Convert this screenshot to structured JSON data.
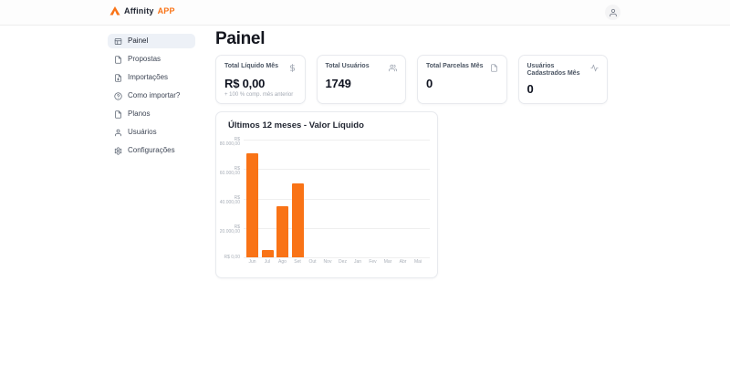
{
  "header": {
    "brand": "Affinity",
    "brand_suffix": "APP"
  },
  "sidebar": {
    "items": [
      {
        "label": "Painel",
        "icon": "dashboard-icon",
        "active": true
      },
      {
        "label": "Propostas",
        "icon": "file-text-icon",
        "active": false
      },
      {
        "label": "Importações",
        "icon": "file-import-icon",
        "active": false
      },
      {
        "label": "Como importar?",
        "icon": "help-circle-icon",
        "active": false
      },
      {
        "label": "Planos",
        "icon": "file-icon",
        "active": false
      },
      {
        "label": "Usuários",
        "icon": "user-icon",
        "active": false
      },
      {
        "label": "Configurações",
        "icon": "gear-icon",
        "active": false
      }
    ]
  },
  "page": {
    "title": "Painel"
  },
  "cards": [
    {
      "label": "Total Líquido Mês",
      "value": "R$ 0,00",
      "subtext": "+ 100 % comp. mês anterior",
      "icon": "dollar-icon"
    },
    {
      "label": "Total Usuários",
      "value": "1749",
      "icon": "users-icon"
    },
    {
      "label": "Total Parcelas Mês",
      "value": "0",
      "icon": "file-text-icon"
    },
    {
      "label": "Usuários Cadastrados Mês",
      "value": "0",
      "icon": "activity-icon"
    }
  ],
  "chart_data": {
    "type": "bar",
    "title": "Últimos 12 meses - Valor Líquido",
    "categories": [
      "Jun",
      "Jul",
      "Ago",
      "Set",
      "Out",
      "Nov",
      "Dez",
      "Jan",
      "Fev",
      "Mar",
      "Abr",
      "Mai"
    ],
    "values": [
      70500,
      5000,
      35000,
      50500,
      0,
      0,
      0,
      0,
      0,
      0,
      0,
      0
    ],
    "y_ticks": [
      "R$ 80.000,00",
      "R$ 60.000,00",
      "R$ 40.000,00",
      "R$ 20.000,00",
      "R$ 0,00"
    ],
    "ylim": [
      0,
      80000
    ],
    "xlabel": "",
    "ylabel": "",
    "grid": true,
    "legend_position": "none",
    "bar_color": "#f97316"
  },
  "colors": {
    "accent_orange": "#f97316",
    "text_dark": "#14161f",
    "text_muted": "#9ca3af",
    "card_border": "#e8eaee",
    "sidebar_active_bg": "#edf1f7"
  }
}
